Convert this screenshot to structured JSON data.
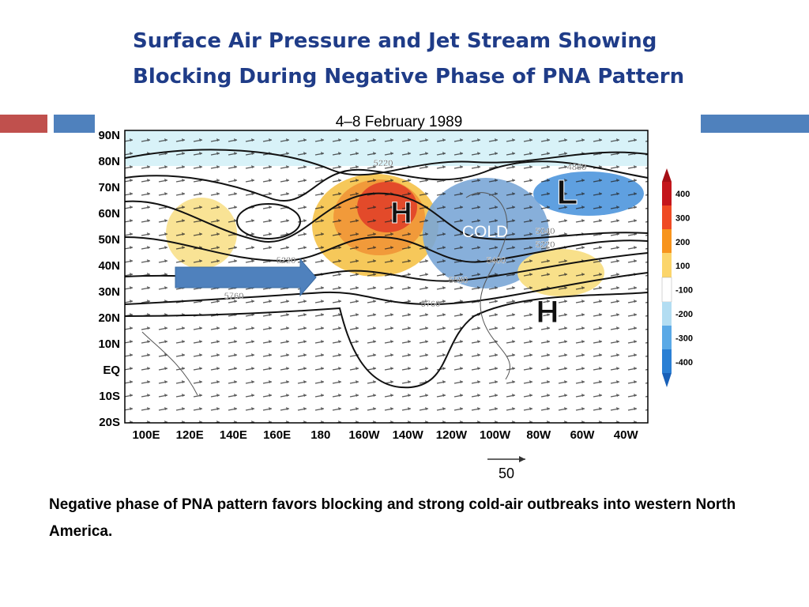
{
  "header": {
    "title_lines": [
      "Surface Air Pressure and Jet Stream Showing",
      "Blocking During Negative Phase of PNA Pattern"
    ]
  },
  "figure": {
    "title": "4–8 February 1989",
    "lat_labels": [
      "90N",
      "80N",
      "70N",
      "60N",
      "50N",
      "40N",
      "30N",
      "20N",
      "10N",
      "EQ",
      "10S",
      "20S"
    ],
    "lon_labels": [
      "100E",
      "120E",
      "140E",
      "160E",
      "180",
      "160W",
      "140W",
      "120W",
      "100W",
      "80W",
      "60W",
      "40W"
    ],
    "colorbar_levels": [
      400,
      300,
      200,
      100,
      -100,
      -200,
      -300,
      -400
    ],
    "contour_labels": [
      "5220",
      "4860",
      "5040",
      "5220",
      "5400",
      "5580",
      "5760",
      "5760",
      "5220"
    ],
    "annotations": {
      "high_pacific": "H",
      "low_atlantic": "L",
      "high_atlantic": "H",
      "cold": "COLD"
    },
    "scale_label": "50"
  },
  "caption": "Negative phase of PNA pattern favors blocking and strong cold-air outbreaks into western North America."
}
